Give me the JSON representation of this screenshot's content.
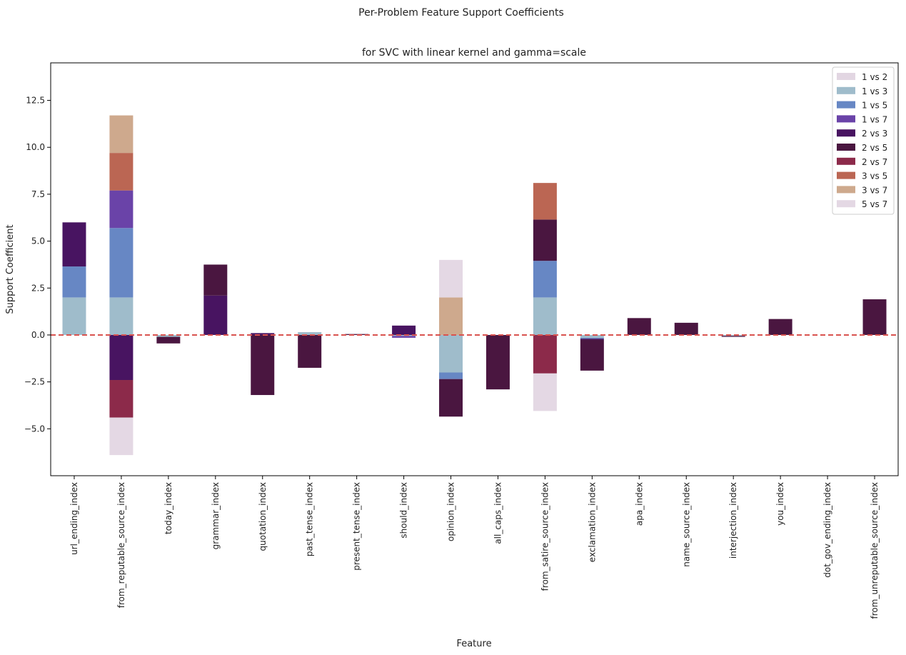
{
  "chart_data": {
    "type": "bar",
    "stacked": true,
    "suptitle": "Per-Problem Feature Support Coefficients",
    "title": "for SVC with linear kernel and gamma=scale",
    "xlabel": "Feature",
    "ylabel": "Support Coefficient",
    "ylim": [
      -7.5,
      14.5
    ],
    "yticks": [
      -5.0,
      -2.5,
      0.0,
      2.5,
      5.0,
      7.5,
      10.0,
      12.5
    ],
    "ytick_labels": [
      "−5.0",
      "−2.5",
      "0.0",
      "2.5",
      "5.0",
      "7.5",
      "10.0",
      "12.5"
    ],
    "legend_position": "upper right",
    "reference_line": {
      "y": 0,
      "style": "dashed",
      "color": "#d9534f"
    },
    "categories": [
      "url_ending_index",
      "from_reputable_source_index",
      "today_index",
      "grammar_index",
      "quotation_index",
      "past_tense_index",
      "present_tense_index",
      "should_index",
      "opinion_index",
      "all_caps_index",
      "from_satire_source_index",
      "exclamation_index",
      "apa_index",
      "name_source_index",
      "interjection_index",
      "you_index",
      "dot_gov_ending_index",
      "from_unreputable_source_index"
    ],
    "series": [
      {
        "name": "1 vs 2",
        "color": "#e2d6e2",
        "values": [
          0,
          0,
          0,
          0,
          0,
          0,
          0,
          0,
          0,
          0,
          0,
          0,
          0,
          0,
          0,
          0,
          0,
          0
        ]
      },
      {
        "name": "1 vs 3",
        "color": "#9fbccb",
        "values": [
          2.0,
          2.0,
          -0.1,
          0,
          0,
          0.15,
          0,
          -0.05,
          -2.0,
          0,
          2.0,
          -0.15,
          0,
          0,
          -0.05,
          0,
          0,
          0
        ]
      },
      {
        "name": "1 vs 5",
        "color": "#6787c4",
        "values": [
          1.65,
          3.7,
          0,
          0,
          0,
          0,
          0,
          0,
          -0.35,
          0,
          1.95,
          -0.05,
          0,
          0,
          0,
          0,
          0,
          0
        ]
      },
      {
        "name": "1 vs 7",
        "color": "#6a43a8",
        "values": [
          0,
          2.0,
          0,
          0,
          0,
          0,
          0,
          -0.1,
          0,
          0,
          0,
          0,
          0,
          0,
          0,
          0,
          0,
          0
        ]
      },
      {
        "name": "2 vs 3",
        "color": "#481461",
        "values": [
          2.35,
          -2.4,
          0,
          2.1,
          0.1,
          0,
          0,
          0.5,
          0,
          0,
          0,
          -0.05,
          0,
          0,
          0,
          0,
          0,
          0
        ]
      },
      {
        "name": "2 vs 5",
        "color": "#4a1640",
        "values": [
          0,
          0,
          -0.35,
          1.65,
          -3.2,
          -1.75,
          0.05,
          0,
          -2.0,
          -2.9,
          2.2,
          -1.65,
          0.9,
          0.65,
          -0.05,
          0.85,
          0,
          1.9
        ]
      },
      {
        "name": "2 vs 7",
        "color": "#8c2a4a",
        "values": [
          0,
          -2.0,
          0,
          0,
          0,
          0,
          0,
          0,
          0,
          0,
          -2.05,
          0,
          0,
          0,
          0,
          0,
          0,
          0
        ]
      },
      {
        "name": "3 vs 5",
        "color": "#bb6653",
        "values": [
          0,
          2.0,
          0,
          0,
          0,
          0,
          0,
          0,
          0,
          0,
          1.95,
          0,
          0,
          0,
          0,
          0,
          0,
          0
        ]
      },
      {
        "name": "3 vs 7",
        "color": "#cea98d",
        "values": [
          0,
          2.0,
          0,
          0,
          0,
          0,
          0,
          0,
          2.0,
          0,
          0,
          0,
          0,
          0,
          0,
          0,
          0,
          0
        ]
      },
      {
        "name": "5 vs 7",
        "color": "#e4d8e4",
        "values": [
          0,
          -2.0,
          0,
          0,
          0,
          0,
          0,
          0,
          2.0,
          0,
          -2.0,
          0,
          0,
          0,
          0,
          0,
          0,
          0
        ]
      }
    ]
  }
}
